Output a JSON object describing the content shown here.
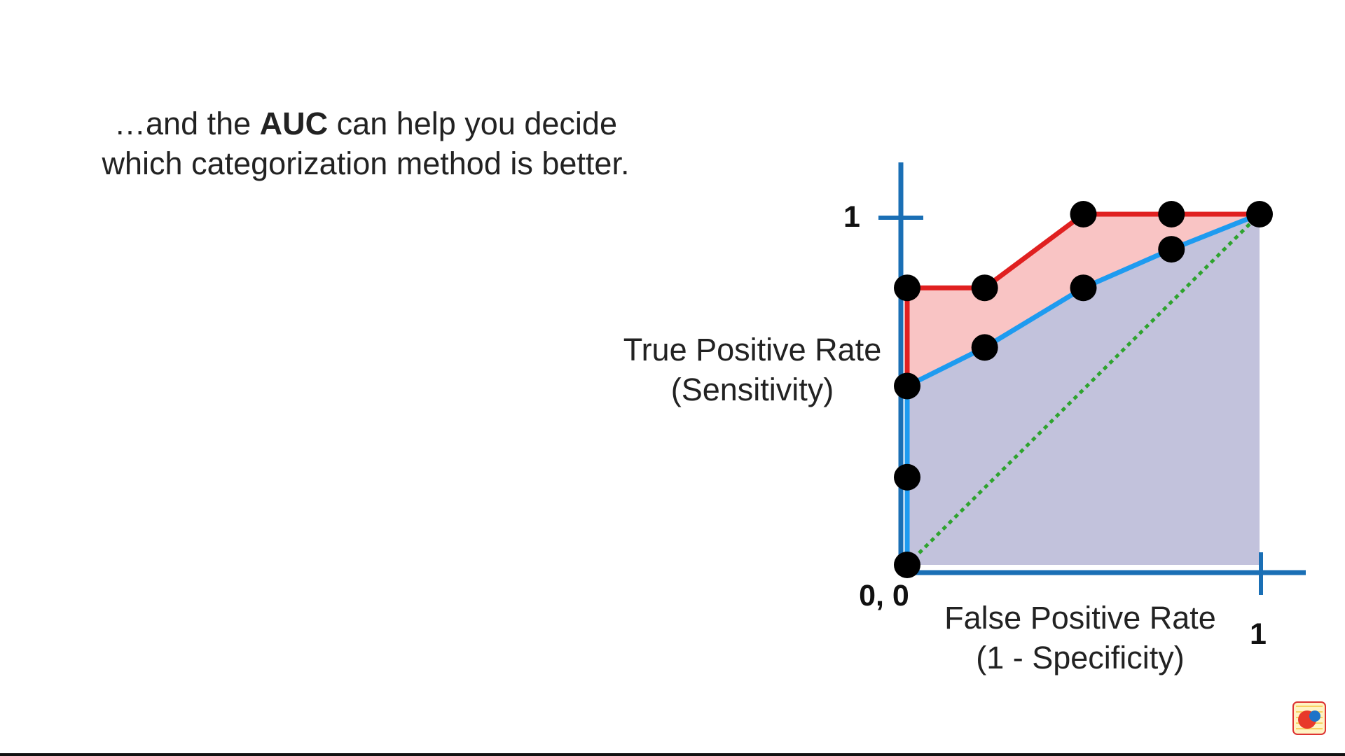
{
  "caption": {
    "line1_pre": "…and the ",
    "line1_bold": "AUC",
    "line1_post": " can help you decide",
    "line2": "which categorization method is better."
  },
  "chart_data": {
    "type": "line",
    "xlabel_lines": [
      "False Positive Rate",
      "(1 - Specificity)"
    ],
    "ylabel_lines": [
      "True Positive Rate",
      "(Sensitivity)"
    ],
    "tick_labels": {
      "origin": "0, 0",
      "x_max": "1",
      "y_max": "1"
    },
    "xlim": [
      0,
      1
    ],
    "ylim": [
      0,
      1
    ],
    "series": [
      {
        "color": "#e02020",
        "fill": "#f9c4c4",
        "x": [
          0,
          0,
          0.22,
          0.5,
          0.75,
          1.0
        ],
        "y": [
          0.5,
          0.79,
          0.79,
          1.0,
          1.0,
          1.0
        ]
      },
      {
        "color": "#1e9bf0",
        "fill": "#c2c2dc",
        "x": [
          0,
          0,
          0.22,
          0.5,
          0.75,
          1.0
        ],
        "y": [
          0,
          0.51,
          0.62,
          0.79,
          0.9,
          1.0
        ]
      },
      {
        "color": "#2ea32e",
        "dashed": true,
        "x": [
          0,
          1
        ],
        "y": [
          0,
          1
        ]
      }
    ],
    "points": {
      "x": [
        0,
        0,
        0,
        0,
        0.22,
        0.22,
        0.5,
        0.5,
        0.75,
        0.75,
        1.0
      ],
      "y": [
        0,
        0.25,
        0.51,
        0.79,
        0.62,
        0.79,
        0.79,
        1.0,
        0.9,
        1.0,
        1.0
      ]
    },
    "axis_color": "#1a6fb5",
    "grid": false
  }
}
